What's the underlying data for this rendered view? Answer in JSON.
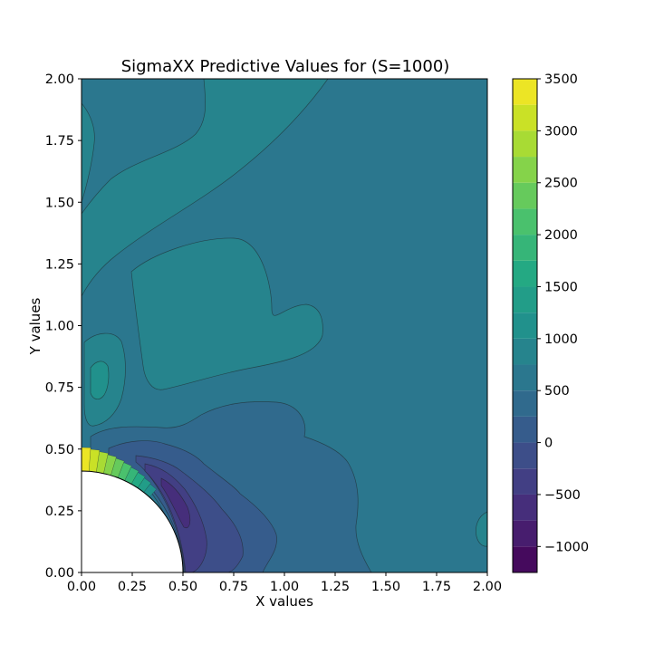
{
  "chart_data": {
    "type": "contour",
    "title": "SigmaXX Predictive Values for (S=1000)",
    "xlabel": "X values",
    "ylabel": "Y values",
    "xlim": [
      0,
      2
    ],
    "ylim": [
      0,
      2
    ],
    "xticks": [
      "0.00",
      "0.25",
      "0.50",
      "0.75",
      "1.00",
      "1.25",
      "1.50",
      "1.75",
      "2.00"
    ],
    "yticks": [
      "0.00",
      "0.25",
      "0.50",
      "0.75",
      "1.00",
      "1.25",
      "1.50",
      "1.75",
      "2.00"
    ],
    "colorbar": {
      "range": [
        -1250,
        3500
      ],
      "step": 250,
      "tick_values": [
        -1000,
        -500,
        0,
        500,
        1000,
        1500,
        2000,
        2500,
        3000,
        3500
      ],
      "tick_labels": [
        "−1000",
        "−500",
        "0",
        "500",
        "1000",
        "1500",
        "2000",
        "2500",
        "3000",
        "3500"
      ],
      "colormap": "viridis"
    },
    "hole": {
      "shape": "quarter-circle",
      "center": [
        0,
        0
      ],
      "radius": 0.5
    },
    "background_level": 500,
    "regions": [
      {
        "name": "upper-band",
        "level": 750
      },
      {
        "name": "left-edge-band",
        "level": 750
      },
      {
        "name": "middle-lobe",
        "level": 750
      },
      {
        "name": "left-lobe",
        "level": 750
      },
      {
        "name": "left-lobe-core",
        "level": 1000
      },
      {
        "name": "compression-zone",
        "level": 250
      },
      {
        "name": "compression-inner",
        "level": 0
      },
      {
        "name": "compression-deep",
        "level": -250
      },
      {
        "name": "compression-peak",
        "level": -500
      },
      {
        "name": "compression-core",
        "level": -750
      },
      {
        "name": "right-edge-patch",
        "level": 750
      }
    ]
  }
}
